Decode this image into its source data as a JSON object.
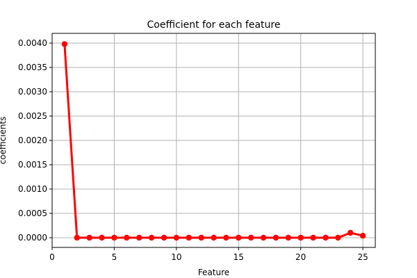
{
  "chart_data": {
    "type": "line",
    "title": "Coefficient for each feature",
    "xlabel": "Feature",
    "ylabel": "coefficients",
    "xlim": [
      0,
      26
    ],
    "ylim": [
      -0.0002,
      0.0042
    ],
    "xticks": [
      0,
      5,
      10,
      15,
      20,
      25
    ],
    "yticks": [
      "0.0000",
      "0.0005",
      "0.0010",
      "0.0015",
      "0.0020",
      "0.0025",
      "0.0030",
      "0.0035",
      "0.0040"
    ],
    "grid": true,
    "series": [
      {
        "color": "#ff0000",
        "marker": "circle",
        "x": [
          1,
          2,
          3,
          4,
          5,
          6,
          7,
          8,
          9,
          10,
          11,
          12,
          13,
          14,
          15,
          16,
          17,
          18,
          19,
          20,
          21,
          22,
          23,
          24,
          25
        ],
        "y": [
          0.00398,
          0.0,
          0.0,
          0.0,
          0.0,
          0.0,
          0.0,
          0.0,
          0.0,
          0.0,
          0.0,
          0.0,
          0.0,
          0.0,
          0.0,
          0.0,
          0.0,
          0.0,
          0.0,
          0.0,
          0.0,
          0.0,
          0.0,
          0.0001,
          4e-05
        ]
      }
    ],
    "colors": {
      "grid": "#b0b0b0",
      "axis": "#000000",
      "background": "#ffffff"
    }
  }
}
